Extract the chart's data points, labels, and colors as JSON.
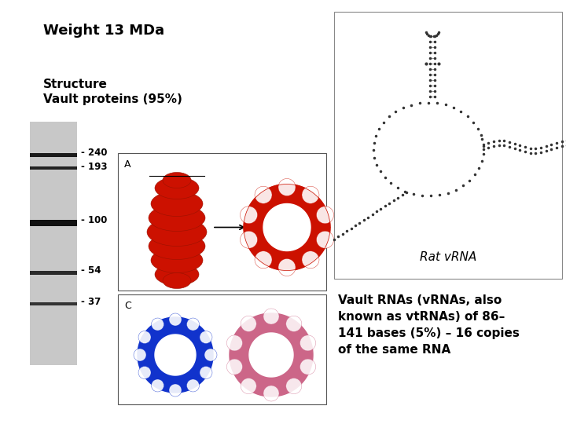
{
  "background_color": "#ffffff",
  "title_weight": "Weight 13 MDa",
  "structure_label": "Structure\nVault proteins (95%)",
  "vault_rna_text": "Vault RNAs (vRNAs, also\nknown as vtRNAs) of 86–\n141 bases (5%) – 16 copies\nof the same RNA",
  "gel_labels": [
    "- 240",
    "- 193",
    "- 100",
    "- 54",
    "- 37"
  ],
  "rat_vrna_label": "Rat vRNA"
}
